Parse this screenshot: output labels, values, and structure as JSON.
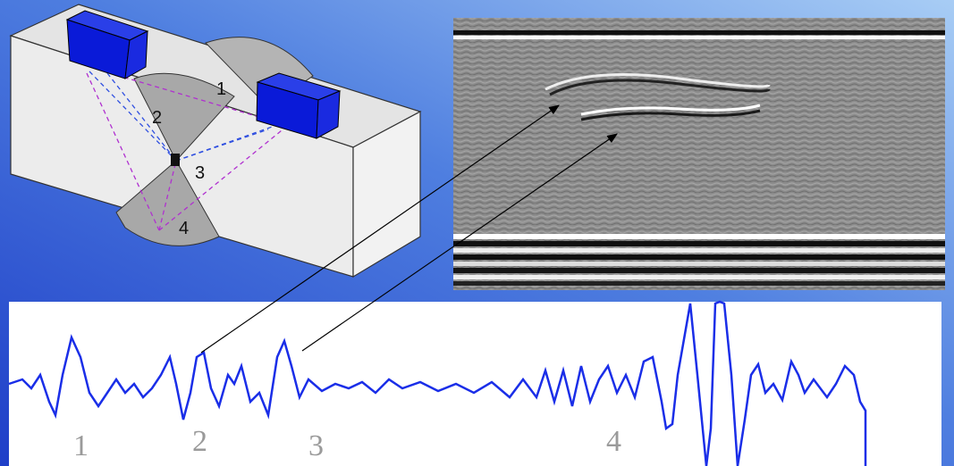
{
  "block_diagram": {
    "path_labels": [
      "1",
      "2",
      "3",
      "4"
    ]
  },
  "waveform": {
    "event_labels": [
      "1",
      "2",
      "3",
      "4"
    ]
  }
}
